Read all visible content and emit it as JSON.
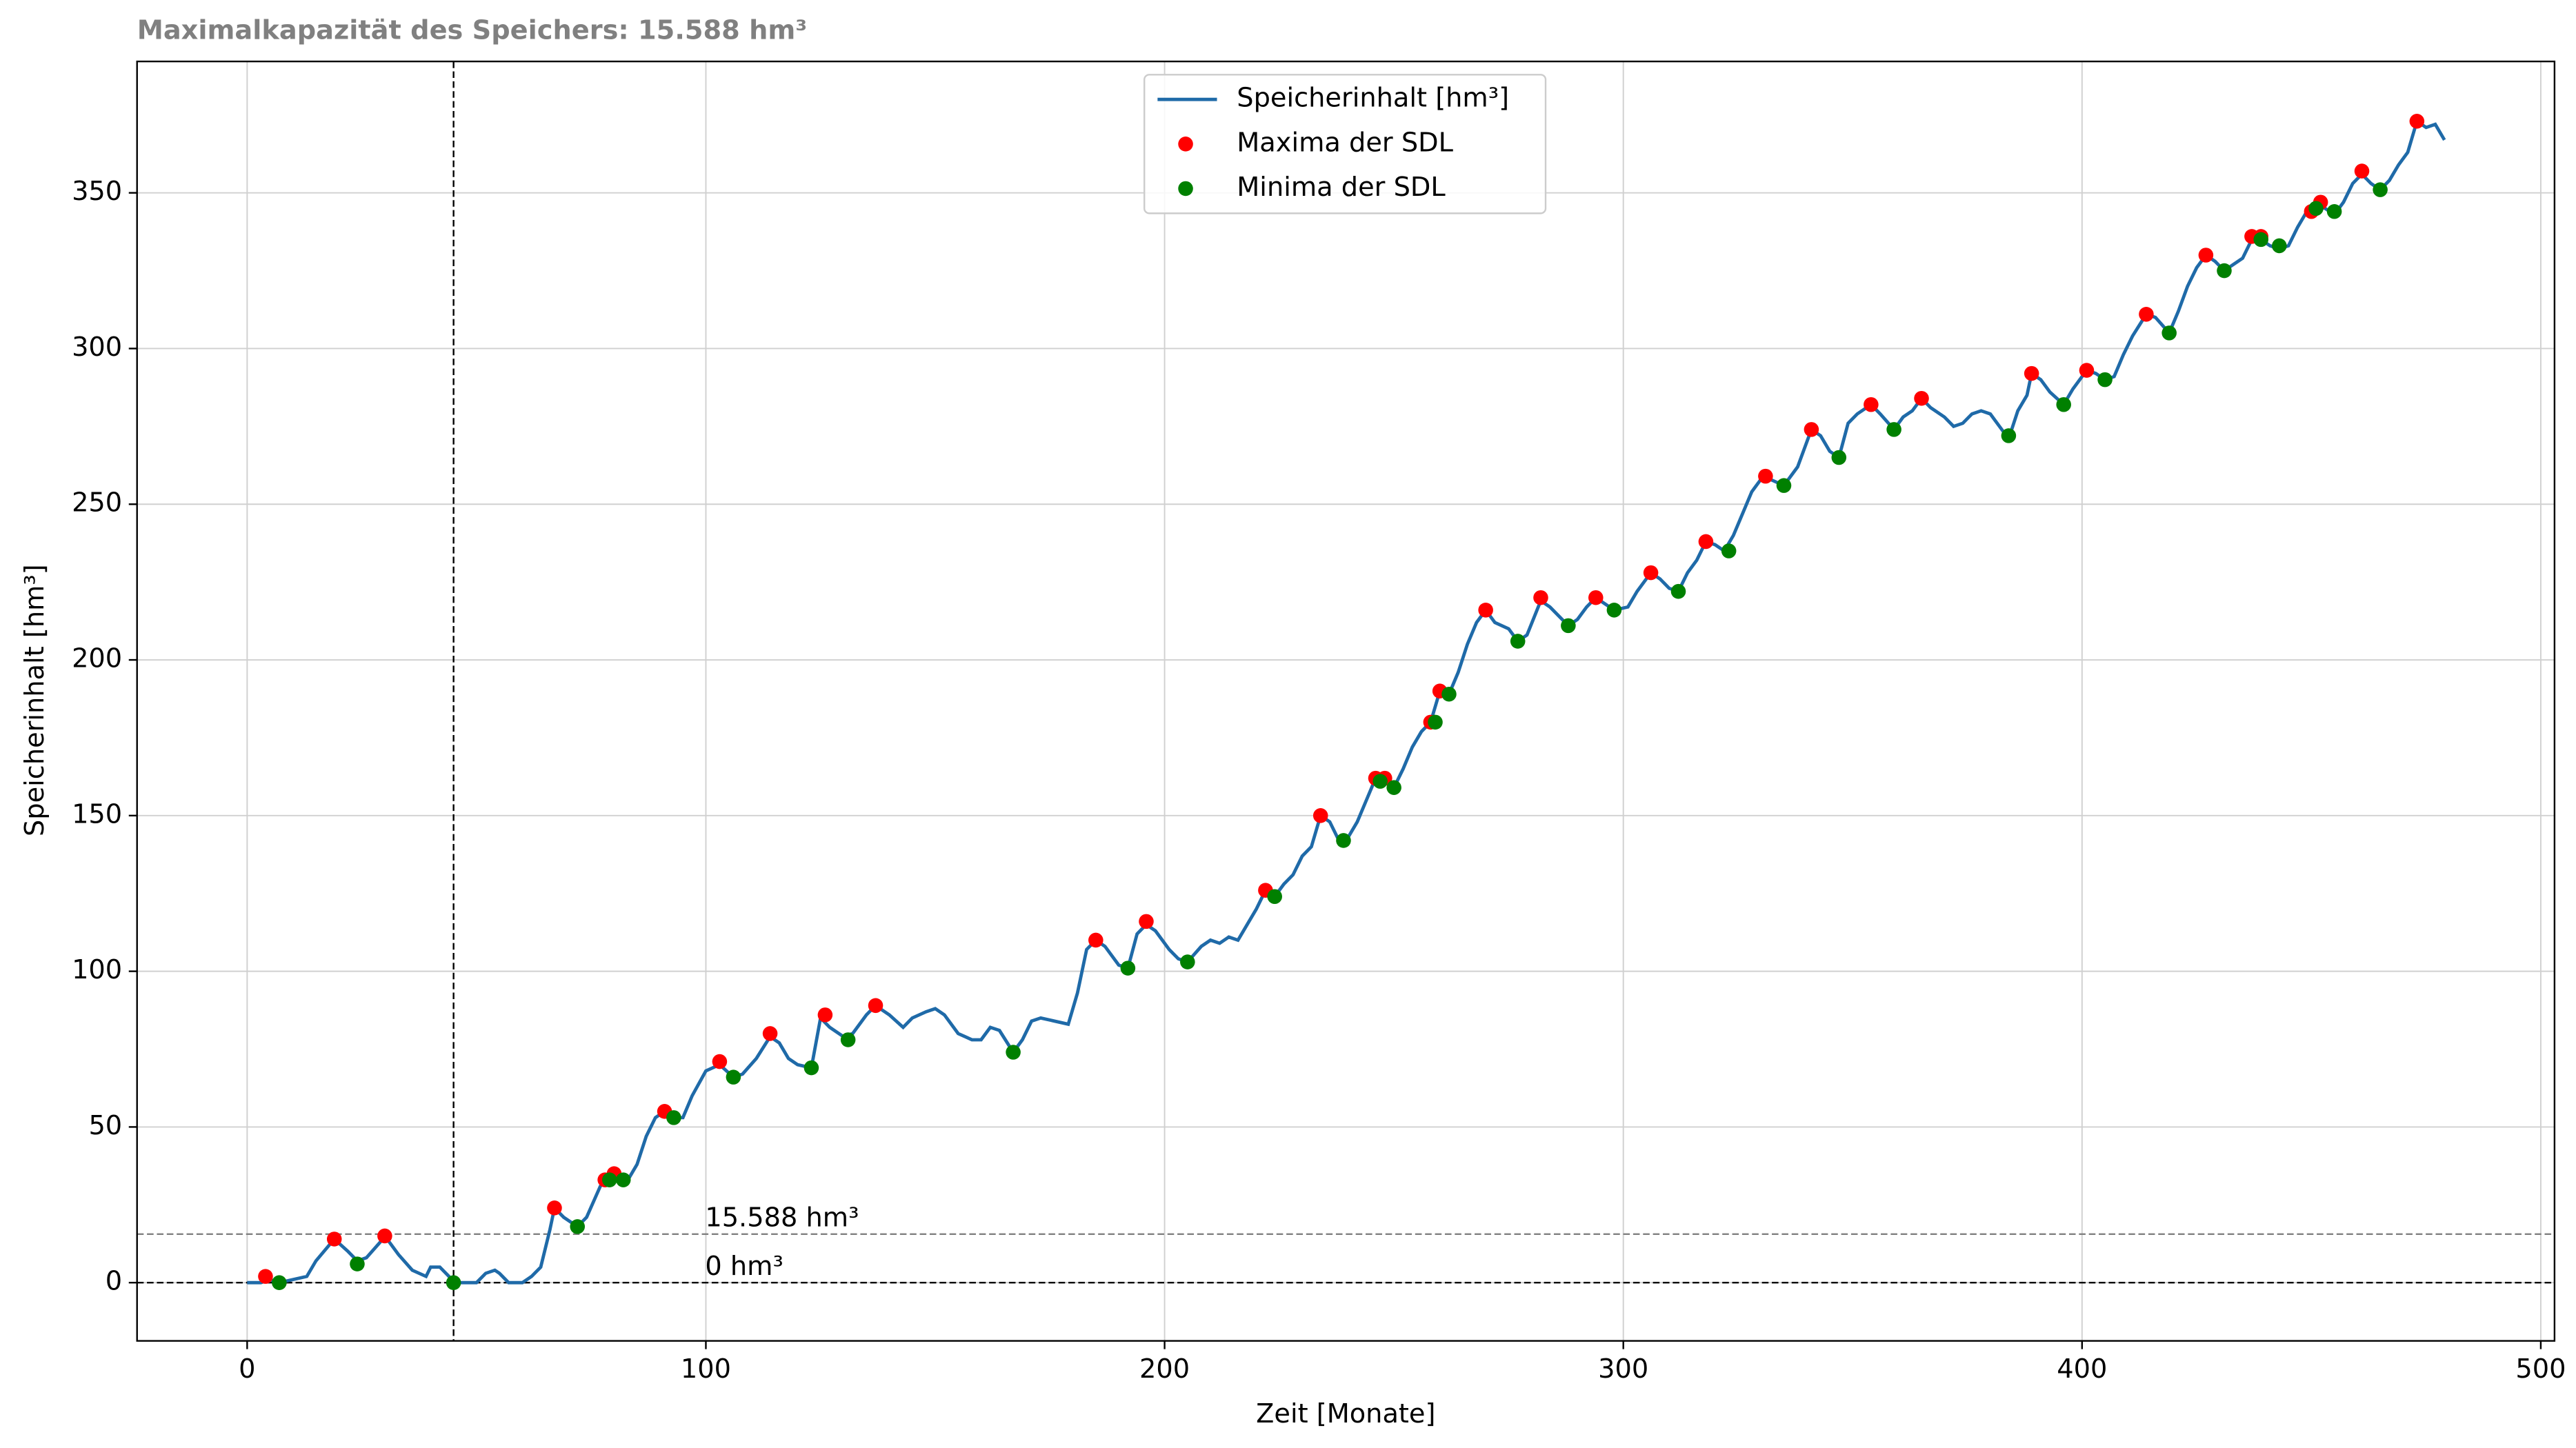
{
  "chart_data": {
    "type": "line",
    "title": "Maximalkapazität des Speichers: 15.588 hm³",
    "x_label": "Zeit [Monate]",
    "y_label": "Speicherinhalt [hm³]",
    "xlim": [
      -24,
      503
    ],
    "ylim": [
      -18.7,
      392.2
    ],
    "xticks": [
      0,
      100,
      200,
      300,
      400,
      500
    ],
    "yticks": [
      0,
      50,
      100,
      150,
      200,
      250,
      300,
      350
    ],
    "grid": true,
    "legend": "upper center",
    "series": [
      {
        "name": "Speicherinhalt [hm³]",
        "type": "line",
        "color": "#1f6aa8",
        "x": [
          0,
          3,
          5,
          7,
          10,
          13,
          15,
          19,
          22,
          24,
          26,
          29,
          30,
          33,
          36,
          39,
          40,
          42,
          44,
          45,
          47,
          50,
          52,
          54,
          55,
          57,
          60,
          62,
          64,
          66,
          67,
          69,
          72,
          74,
          77,
          79,
          81,
          83,
          85,
          87,
          89,
          91,
          93,
          95,
          97,
          100,
          103,
          106,
          108,
          111,
          114,
          116,
          118,
          120,
          123,
          125,
          127,
          130,
          132,
          135,
          137,
          140,
          143,
          145,
          148,
          150,
          152,
          155,
          158,
          160,
          162,
          164,
          167,
          169,
          171,
          173,
          176,
          179,
          181,
          183,
          185,
          187,
          190,
          192,
          194,
          196,
          198,
          201,
          203,
          205,
          208,
          210,
          212,
          214,
          216,
          218,
          220,
          222,
          224,
          226,
          228,
          230,
          232,
          234,
          236,
          238,
          240,
          242,
          244,
          246,
          248,
          250,
          252,
          254,
          256,
          258,
          260,
          262,
          264,
          266,
          268,
          270,
          272,
          275,
          277,
          279,
          282,
          284,
          286,
          288,
          290,
          292,
          294,
          296,
          298,
          301,
          303,
          306,
          308,
          310,
          312,
          314,
          316,
          318,
          320,
          322,
          324,
          326,
          328,
          330,
          332,
          335,
          338,
          341,
          343,
          345,
          347,
          349,
          351,
          354,
          356,
          359,
          361,
          363,
          365,
          367,
          370,
          372,
          374,
          376,
          378,
          380,
          382,
          384,
          386,
          388,
          389,
          391,
          393,
          396,
          398,
          401,
          403,
          405,
          407,
          409,
          411,
          414,
          416,
          419,
          421,
          423,
          425,
          427,
          429,
          431,
          433,
          435,
          437,
          439,
          441,
          443,
          445,
          447,
          449,
          451,
          453,
          455,
          457,
          459,
          461,
          463,
          465,
          467,
          469,
          471,
          473,
          475,
          477,
          479
        ],
        "values": [
          0,
          0,
          1,
          0,
          1,
          2,
          7,
          14,
          10,
          7,
          8,
          13,
          15,
          9,
          4,
          2,
          5,
          5,
          2,
          0,
          0,
          0,
          3,
          4,
          3,
          0,
          0,
          2,
          5,
          17,
          24,
          21,
          18,
          21,
          31,
          34,
          33,
          33,
          38,
          47,
          53,
          55,
          53,
          53,
          60,
          68,
          70,
          66,
          67,
          72,
          79,
          77,
          72,
          70,
          69,
          85,
          82,
          79,
          80,
          86,
          89,
          86,
          82,
          85,
          87,
          88,
          86,
          80,
          78,
          78,
          82,
          81,
          74,
          78,
          84,
          85,
          84,
          83,
          93,
          107,
          110,
          108,
          102,
          101,
          112,
          115,
          113,
          107,
          104,
          103,
          108,
          110,
          109,
          111,
          110,
          115,
          120,
          126,
          124,
          128,
          131,
          137,
          140,
          150,
          148,
          142,
          143,
          148,
          155,
          162,
          162,
          159,
          165,
          172,
          177,
          180,
          190,
          189,
          196,
          205,
          212,
          216,
          212,
          210,
          206,
          208,
          219,
          217,
          214,
          211,
          213,
          217,
          220,
          218,
          216,
          217,
          222,
          228,
          226,
          223,
          222,
          228,
          232,
          238,
          237,
          235,
          240,
          247,
          254,
          258,
          258,
          256,
          262,
          274,
          272,
          267,
          265,
          276,
          279,
          282,
          279,
          274,
          278,
          280,
          284,
          281,
          278,
          275,
          276,
          279,
          280,
          279,
          275,
          271,
          280,
          285,
          292,
          290,
          286,
          282,
          287,
          293,
          292,
          290,
          291,
          298,
          304,
          311,
          310,
          305,
          312,
          320,
          326,
          330,
          328,
          325,
          327,
          329,
          335,
          335,
          333,
          332,
          333,
          339,
          344,
          346,
          345,
          343,
          347,
          353,
          356,
          353,
          351,
          354,
          359,
          363,
          373,
          371,
          372,
          367
        ]
      },
      {
        "name": "Maxima der SDL",
        "type": "scatter",
        "color": "#ff0000",
        "x": [
          4,
          19,
          30,
          67,
          78,
          80,
          91,
          103,
          114,
          126,
          137,
          185,
          196,
          222,
          234,
          246,
          248,
          258,
          260,
          270,
          282,
          294,
          306,
          318,
          331,
          341,
          354,
          365,
          389,
          401,
          414,
          427,
          437,
          439,
          450,
          452,
          461,
          473
        ],
        "values": [
          2,
          14,
          15,
          24,
          33,
          35,
          55,
          71,
          80,
          86,
          89,
          110,
          116,
          126,
          150,
          162,
          162,
          180,
          190,
          216,
          220,
          220,
          228,
          238,
          259,
          274,
          282,
          284,
          292,
          293,
          311,
          330,
          336,
          336,
          344,
          347,
          357,
          373
        ]
      },
      {
        "name": "Minima der SDL",
        "type": "scatter",
        "color": "#008000",
        "x": [
          7,
          24,
          45,
          72,
          79,
          82,
          93,
          106,
          123,
          131,
          167,
          192,
          205,
          224,
          239,
          247,
          250,
          259,
          262,
          277,
          288,
          298,
          312,
          323,
          335,
          347,
          359,
          384,
          396,
          405,
          419,
          431,
          439,
          443,
          451,
          455,
          465
        ],
        "values": [
          0,
          6,
          0,
          18,
          33,
          33,
          53,
          66,
          69,
          78,
          74,
          101,
          103,
          124,
          142,
          161,
          159,
          180,
          189,
          206,
          211,
          216,
          222,
          235,
          256,
          265,
          274,
          272,
          282,
          290,
          305,
          325,
          335,
          333,
          345,
          344,
          351
        ]
      }
    ],
    "reference_lines": [
      {
        "axis": "y",
        "value": 15.588,
        "color": "#808080",
        "label": "15.588 hm³"
      },
      {
        "axis": "y",
        "value": 0,
        "color": "#000000",
        "label": "0 hm³"
      },
      {
        "axis": "x",
        "value": 45,
        "color": "#000000"
      }
    ]
  }
}
